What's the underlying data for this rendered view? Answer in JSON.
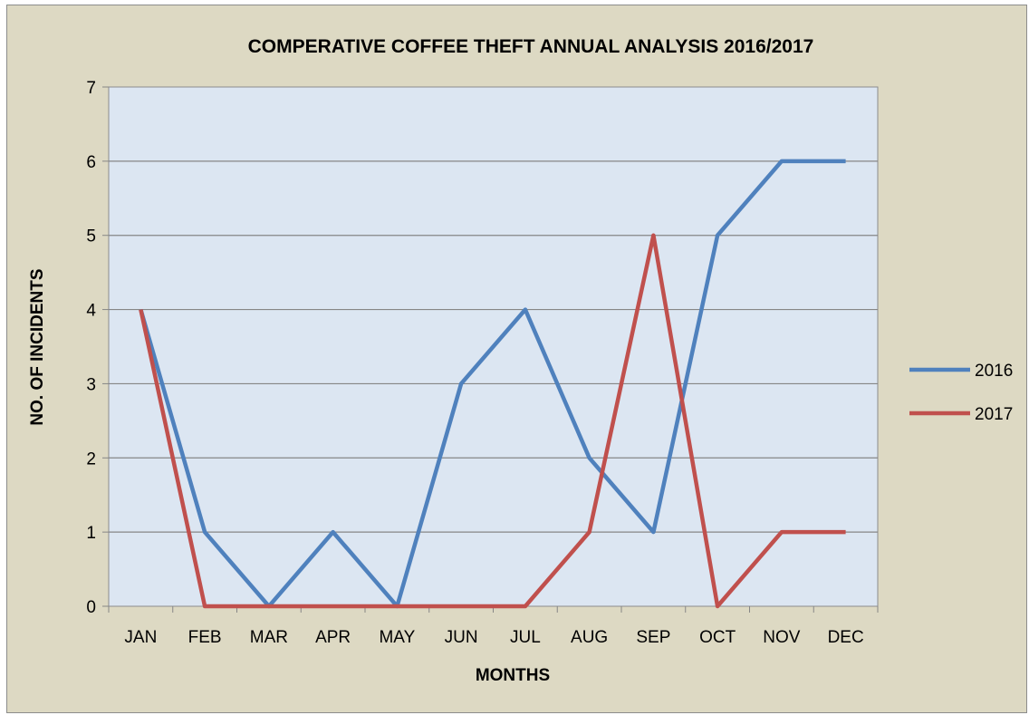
{
  "chart_data": {
    "type": "line",
    "title": "COMPERATIVE COFFEE THEFT ANNUAL ANALYSIS 2016/2017",
    "xlabel": "MONTHS",
    "ylabel": "NO. OF INCIDENTS",
    "categories": [
      "JAN",
      "FEB",
      "MAR",
      "APR",
      "MAY",
      "JUN",
      "JUL",
      "AUG",
      "SEP",
      "OCT",
      "NOV",
      "DEC"
    ],
    "ylim": [
      0,
      7
    ],
    "yticks": [
      "0",
      "1",
      "2",
      "3",
      "4",
      "5",
      "6",
      "7"
    ],
    "grid": true,
    "legend": "right",
    "series": [
      {
        "name": "2016",
        "color": "#4f81bd",
        "values": [
          4,
          1,
          0,
          1,
          0,
          3,
          4,
          2,
          1,
          5,
          6,
          6
        ]
      },
      {
        "name": "2017",
        "color": "#c0504d",
        "values": [
          4,
          0,
          0,
          0,
          0,
          0,
          0,
          1,
          5,
          0,
          1,
          1
        ]
      }
    ]
  }
}
